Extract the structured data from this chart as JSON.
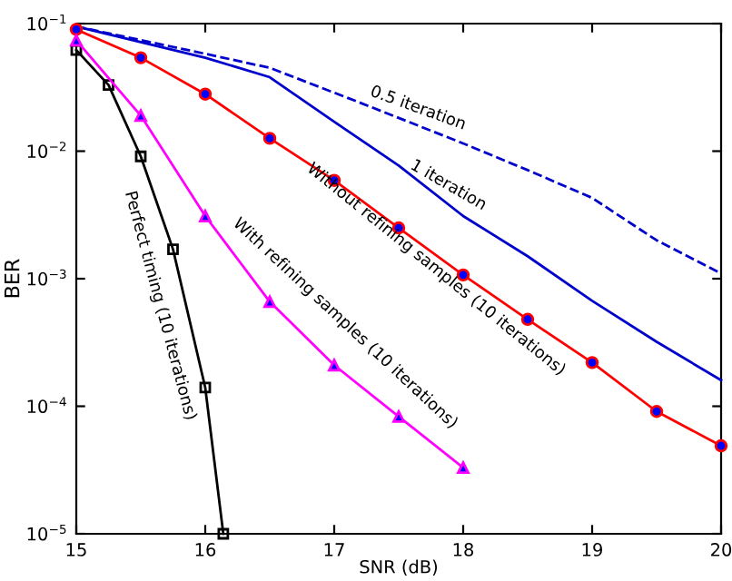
{
  "chart_data": {
    "type": "line",
    "xlabel": "SNR (dB)",
    "ylabel": "BER",
    "log": "y",
    "grid": false,
    "legend": false,
    "xlim": [
      15,
      20
    ],
    "xticks": [
      15,
      16,
      17,
      18,
      19,
      20
    ],
    "ylim": [
      1e-05,
      0.1
    ],
    "yticks": [
      {
        "value": 1e-05,
        "label": "10$^{−5}$"
      },
      {
        "value": 0.0001,
        "label": "10$^{−4}$"
      },
      {
        "value": 0.001,
        "label": "10$^{−3}$"
      },
      {
        "value": 0.01,
        "label": "10$^{−2}$"
      },
      {
        "value": 0.1,
        "label": "10$^{−1}$"
      }
    ],
    "series": [
      {
        "color": "#0000cc",
        "line_style": "dashed",
        "marker": "none",
        "x": [
          15,
          16,
          16.5,
          17.2,
          18,
          18.5,
          19,
          19.5,
          20
        ],
        "values": [
          0.095,
          0.058,
          0.045,
          0.024,
          0.0115,
          0.0071,
          0.0043,
          0.002,
          0.0011
        ]
      },
      {
        "color": "#0000cc",
        "line_style": "solid",
        "marker": "none",
        "x": [
          15,
          16,
          16.5,
          17,
          17.5,
          18,
          18.5,
          19,
          19.5,
          20
        ],
        "values": [
          0.095,
          0.054,
          0.038,
          0.017,
          0.0077,
          0.0031,
          0.0015,
          0.00067,
          0.00032,
          0.00016
        ]
      },
      {
        "color": "#ff0000",
        "line_style": "solid",
        "marker": "circle",
        "x": [
          15,
          15.5,
          16,
          16.5,
          17,
          17.5,
          18,
          18.5,
          19,
          19.5,
          20
        ],
        "values": [
          0.09,
          0.054,
          0.028,
          0.0126,
          0.0059,
          0.0025,
          0.00107,
          0.00048,
          0.00022,
          9.1e-05,
          4.9e-05
        ]
      },
      {
        "color": "#ff00ff",
        "line_style": "solid",
        "marker": "triangle",
        "x": [
          15,
          15.5,
          16,
          16.5,
          17,
          17.5,
          18
        ],
        "values": [
          0.074,
          0.019,
          0.0031,
          0.00066,
          0.00021,
          8.3e-05,
          3.3e-05
        ]
      },
      {
        "color": "#000000",
        "line_style": "solid",
        "marker": "square",
        "x": [
          15,
          15.25,
          15.5,
          15.75,
          16,
          16.14
        ],
        "values": [
          0.062,
          0.033,
          0.0091,
          0.0017,
          0.00014,
          1e-05
        ]
      }
    ],
    "annotations": [
      "0.5 iteration",
      "1 iteration",
      "Without refining samples (10 iterations)",
      "With refining samples (10 iterations)",
      "Perfect timing (10 iterations)"
    ]
  }
}
